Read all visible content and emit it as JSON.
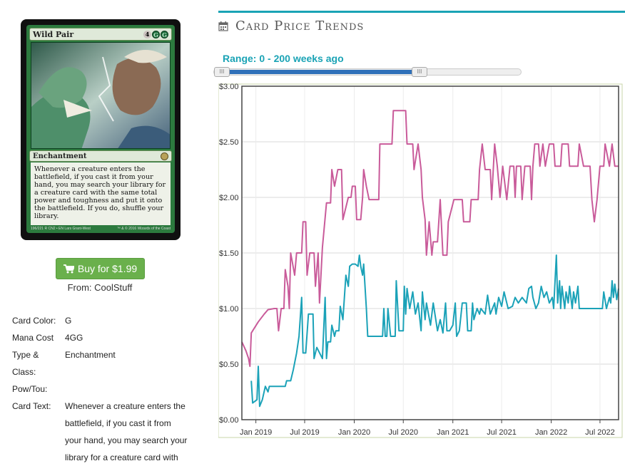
{
  "card": {
    "name": "Wild Pair",
    "mana_symbols": [
      "4",
      "G",
      "G"
    ],
    "type_line": "Enchantment",
    "rules_text": "Whenever a creature enters the battlefield, if you cast it from your hand, you may search your library for a creature card with the same total power and toughness and put it onto the battlefield. If you do, shuffle your library.",
    "collector": "196/221 R",
    "set_line": "CN2 • EN",
    "artist": "Lars Grant-West",
    "copyright": "™ & © 2016 Wizards of the Coast"
  },
  "buy": {
    "label": "Buy for $1.99",
    "from": "From: CoolStuff"
  },
  "details": [
    {
      "label": "Card Color:",
      "value": "G"
    },
    {
      "label": "Mana Cost",
      "value": "4GG"
    },
    {
      "label": "Type & Class:",
      "value": "Enchantment"
    },
    {
      "label": "Pow/Tou:",
      "value": ""
    },
    {
      "label": "Card Text:",
      "value": "Whenever a creature enters the battlefield, if you cast it from your hand, you may search your library for a creature card with"
    }
  ],
  "section": {
    "title": "Card Price Trends",
    "icon": "calendar-icon"
  },
  "range": {
    "label": "Range: 0 - 200 weeks ago",
    "low_weeks": 0,
    "high_weeks": 200
  },
  "chart_data": {
    "type": "line",
    "title": "",
    "xlabel": "",
    "ylabel": "",
    "ylim": [
      0,
      3
    ],
    "xlim": [
      "2018-11-10",
      "2022-09-08"
    ],
    "yticks": [
      "$0.00",
      "$0.50",
      "$1.00",
      "$1.50",
      "$2.00",
      "$2.50",
      "$3.00"
    ],
    "xticks": [
      {
        "label": "Jan 2019",
        "date": "2019-01-01"
      },
      {
        "label": "Jul 2019",
        "date": "2019-07-01"
      },
      {
        "label": "Jan 2020",
        "date": "2020-01-01"
      },
      {
        "label": "Jul 2020",
        "date": "2020-07-01"
      },
      {
        "label": "Jan 2021",
        "date": "2021-01-01"
      },
      {
        "label": "Jul 2021",
        "date": "2021-07-01"
      },
      {
        "label": "Jan 2022",
        "date": "2022-01-01"
      },
      {
        "label": "Jul 2022",
        "date": "2022-07-01"
      }
    ],
    "grid": true,
    "series": [
      {
        "color": "#c95b9a",
        "points": [
          [
            "2018-11-10",
            0.7
          ],
          [
            "2018-11-25",
            0.62
          ],
          [
            "2018-12-05",
            0.55
          ],
          [
            "2018-12-10",
            0.48
          ],
          [
            "2018-12-15",
            0.78
          ],
          [
            "2019-01-10",
            0.88
          ],
          [
            "2019-02-01",
            0.95
          ],
          [
            "2019-02-15",
            0.99
          ],
          [
            "2019-03-10",
            1.0
          ],
          [
            "2019-03-20",
            1.0
          ],
          [
            "2019-03-26",
            0.8
          ],
          [
            "2019-04-05",
            1.0
          ],
          [
            "2019-04-15",
            1.0
          ],
          [
            "2019-04-20",
            1.35
          ],
          [
            "2019-04-30",
            1.2
          ],
          [
            "2019-05-05",
            1.0
          ],
          [
            "2019-05-10",
            1.5
          ],
          [
            "2019-05-25",
            1.3
          ],
          [
            "2019-06-01",
            1.5
          ],
          [
            "2019-06-20",
            1.5
          ],
          [
            "2019-06-25",
            1.78
          ],
          [
            "2019-07-05",
            1.78
          ],
          [
            "2019-07-10",
            1.3
          ],
          [
            "2019-07-20",
            1.5
          ],
          [
            "2019-08-05",
            1.5
          ],
          [
            "2019-08-10",
            1.2
          ],
          [
            "2019-08-20",
            1.5
          ],
          [
            "2019-08-25",
            1.05
          ],
          [
            "2019-09-05",
            1.55
          ],
          [
            "2019-09-20",
            1.95
          ],
          [
            "2019-10-05",
            1.95
          ],
          [
            "2019-10-10",
            2.25
          ],
          [
            "2019-10-20",
            2.1
          ],
          [
            "2019-11-01",
            2.25
          ],
          [
            "2019-11-15",
            2.25
          ],
          [
            "2019-11-20",
            1.8
          ],
          [
            "2019-12-10",
            2.0
          ],
          [
            "2019-12-20",
            2.0
          ],
          [
            "2019-12-25",
            2.1
          ],
          [
            "2020-01-05",
            2.1
          ],
          [
            "2020-01-10",
            1.8
          ],
          [
            "2020-01-25",
            1.8
          ],
          [
            "2020-02-01",
            2.0
          ],
          [
            "2020-02-05",
            2.25
          ],
          [
            "2020-02-15",
            2.1
          ],
          [
            "2020-02-25",
            1.98
          ],
          [
            "2020-04-01",
            1.98
          ],
          [
            "2020-04-05",
            2.48
          ],
          [
            "2020-05-15",
            2.48
          ],
          [
            "2020-05-20",
            2.48
          ],
          [
            "2020-05-25",
            2.78
          ],
          [
            "2020-07-05",
            2.78
          ],
          [
            "2020-07-10",
            2.78
          ],
          [
            "2020-07-15",
            2.48
          ],
          [
            "2020-08-05",
            2.48
          ],
          [
            "2020-08-10",
            2.25
          ],
          [
            "2020-08-25",
            2.48
          ],
          [
            "2020-09-05",
            2.25
          ],
          [
            "2020-09-10",
            2.0
          ],
          [
            "2020-09-20",
            1.8
          ],
          [
            "2020-09-25",
            1.48
          ],
          [
            "2020-10-05",
            1.78
          ],
          [
            "2020-10-15",
            1.48
          ],
          [
            "2020-10-20",
            1.6
          ],
          [
            "2020-11-05",
            1.6
          ],
          [
            "2020-11-15",
            1.98
          ],
          [
            "2020-11-25",
            1.48
          ],
          [
            "2020-12-10",
            1.48
          ],
          [
            "2020-12-15",
            1.78
          ],
          [
            "2021-01-05",
            1.98
          ],
          [
            "2021-02-05",
            1.98
          ],
          [
            "2021-02-10",
            1.78
          ],
          [
            "2021-03-05",
            1.78
          ],
          [
            "2021-03-10",
            1.98
          ],
          [
            "2021-04-05",
            1.98
          ],
          [
            "2021-04-10",
            2.25
          ],
          [
            "2021-04-20",
            2.48
          ],
          [
            "2021-05-01",
            2.25
          ],
          [
            "2021-05-20",
            2.25
          ],
          [
            "2021-05-25",
            1.98
          ],
          [
            "2021-06-05",
            2.48
          ],
          [
            "2021-06-15",
            2.28
          ],
          [
            "2021-06-25",
            2.0
          ],
          [
            "2021-07-05",
            2.28
          ],
          [
            "2021-07-20",
            1.98
          ],
          [
            "2021-08-01",
            2.28
          ],
          [
            "2021-08-15",
            2.28
          ],
          [
            "2021-08-20",
            2.0
          ],
          [
            "2021-08-25",
            2.28
          ],
          [
            "2021-09-10",
            2.28
          ],
          [
            "2021-09-15",
            1.98
          ],
          [
            "2021-09-25",
            2.28
          ],
          [
            "2021-10-15",
            2.28
          ],
          [
            "2021-10-20",
            1.98
          ],
          [
            "2021-10-25",
            2.28
          ],
          [
            "2021-11-01",
            2.48
          ],
          [
            "2021-11-15",
            2.48
          ],
          [
            "2021-11-20",
            2.28
          ],
          [
            "2021-12-01",
            2.48
          ],
          [
            "2021-12-10",
            2.28
          ],
          [
            "2021-12-25",
            2.48
          ],
          [
            "2022-01-10",
            2.48
          ],
          [
            "2022-01-15",
            2.28
          ],
          [
            "2022-02-05",
            2.28
          ],
          [
            "2022-02-10",
            2.48
          ],
          [
            "2022-03-05",
            2.48
          ],
          [
            "2022-03-10",
            2.28
          ],
          [
            "2022-04-10",
            2.28
          ],
          [
            "2022-04-15",
            2.48
          ],
          [
            "2022-05-01",
            2.28
          ],
          [
            "2022-05-25",
            2.28
          ],
          [
            "2022-06-01",
            1.98
          ],
          [
            "2022-06-10",
            1.78
          ],
          [
            "2022-06-20",
            1.98
          ],
          [
            "2022-07-01",
            2.28
          ],
          [
            "2022-07-15",
            2.28
          ],
          [
            "2022-07-20",
            2.48
          ],
          [
            "2022-08-05",
            2.28
          ],
          [
            "2022-08-15",
            2.48
          ],
          [
            "2022-08-25",
            2.28
          ],
          [
            "2022-09-08",
            2.28
          ]
        ]
      },
      {
        "color": "#1ba2b8",
        "points": [
          [
            "2018-12-15",
            0.35
          ],
          [
            "2018-12-20",
            0.15
          ],
          [
            "2019-01-05",
            0.18
          ],
          [
            "2019-01-10",
            0.48
          ],
          [
            "2019-01-15",
            0.12
          ],
          [
            "2019-01-25",
            0.18
          ],
          [
            "2019-02-05",
            0.3
          ],
          [
            "2019-02-15",
            0.25
          ],
          [
            "2019-02-20",
            0.3
          ],
          [
            "2019-04-20",
            0.3
          ],
          [
            "2019-04-25",
            0.35
          ],
          [
            "2019-05-10",
            0.35
          ],
          [
            "2019-05-20",
            0.45
          ],
          [
            "2019-06-01",
            0.6
          ],
          [
            "2019-06-10",
            0.75
          ],
          [
            "2019-06-20",
            1.1
          ],
          [
            "2019-06-25",
            0.6
          ],
          [
            "2019-07-05",
            0.6
          ],
          [
            "2019-07-15",
            0.95
          ],
          [
            "2019-08-01",
            0.95
          ],
          [
            "2019-08-05",
            0.55
          ],
          [
            "2019-08-15",
            0.65
          ],
          [
            "2019-09-05",
            0.55
          ],
          [
            "2019-09-15",
            1.1
          ],
          [
            "2019-09-20",
            0.55
          ],
          [
            "2019-09-25",
            0.7
          ],
          [
            "2019-10-05",
            0.7
          ],
          [
            "2019-10-10",
            0.85
          ],
          [
            "2019-10-20",
            0.75
          ],
          [
            "2019-10-25",
            0.8
          ],
          [
            "2019-11-05",
            0.8
          ],
          [
            "2019-11-10",
            1.02
          ],
          [
            "2019-11-20",
            0.9
          ],
          [
            "2019-12-01",
            1.3
          ],
          [
            "2019-12-10",
            1.2
          ],
          [
            "2019-12-15",
            1.38
          ],
          [
            "2019-12-25",
            1.4
          ],
          [
            "2020-01-05",
            1.4
          ],
          [
            "2020-01-15",
            1.38
          ],
          [
            "2020-01-20",
            1.48
          ],
          [
            "2020-01-25",
            1.38
          ],
          [
            "2020-02-01",
            1.3
          ],
          [
            "2020-02-05",
            1.4
          ],
          [
            "2020-02-15",
            1.0
          ],
          [
            "2020-02-20",
            0.75
          ],
          [
            "2020-04-15",
            0.75
          ],
          [
            "2020-04-20",
            1.0
          ],
          [
            "2020-04-25",
            0.75
          ],
          [
            "2020-05-01",
            0.75
          ],
          [
            "2020-05-05",
            1.0
          ],
          [
            "2020-05-15",
            0.75
          ],
          [
            "2020-06-01",
            0.75
          ],
          [
            "2020-06-05",
            1.25
          ],
          [
            "2020-06-15",
            0.8
          ],
          [
            "2020-07-01",
            0.8
          ],
          [
            "2020-07-05",
            1.2
          ],
          [
            "2020-07-10",
            0.95
          ],
          [
            "2020-07-15",
            1.18
          ],
          [
            "2020-07-25",
            1.0
          ],
          [
            "2020-08-05",
            1.15
          ],
          [
            "2020-08-15",
            0.95
          ],
          [
            "2020-08-25",
            1.05
          ],
          [
            "2020-09-05",
            0.8
          ],
          [
            "2020-09-10",
            1.15
          ],
          [
            "2020-09-20",
            0.9
          ],
          [
            "2020-09-25",
            1.05
          ],
          [
            "2020-10-10",
            0.85
          ],
          [
            "2020-10-20",
            1.05
          ],
          [
            "2020-11-05",
            0.8
          ],
          [
            "2020-11-15",
            0.9
          ],
          [
            "2020-11-25",
            0.78
          ],
          [
            "2020-12-05",
            1.05
          ],
          [
            "2020-12-10",
            0.8
          ],
          [
            "2020-12-20",
            0.8
          ],
          [
            "2021-01-01",
            0.85
          ],
          [
            "2021-01-10",
            1.05
          ],
          [
            "2021-01-15",
            0.75
          ],
          [
            "2021-01-25",
            0.8
          ],
          [
            "2021-02-05",
            1.05
          ],
          [
            "2021-02-20",
            1.05
          ],
          [
            "2021-02-25",
            0.8
          ],
          [
            "2021-03-10",
            0.8
          ],
          [
            "2021-03-15",
            1.05
          ],
          [
            "2021-03-20",
            0.9
          ],
          [
            "2021-04-01",
            1.0
          ],
          [
            "2021-04-10",
            0.95
          ],
          [
            "2021-04-15",
            1.0
          ],
          [
            "2021-05-01",
            0.95
          ],
          [
            "2021-05-10",
            1.12
          ],
          [
            "2021-05-20",
            0.95
          ],
          [
            "2021-06-05",
            1.05
          ],
          [
            "2021-06-10",
            0.95
          ],
          [
            "2021-06-20",
            1.1
          ],
          [
            "2021-07-01",
            1.02
          ],
          [
            "2021-07-10",
            1.15
          ],
          [
            "2021-07-25",
            1.0
          ],
          [
            "2021-08-10",
            1.02
          ],
          [
            "2021-08-20",
            1.1
          ],
          [
            "2021-09-01",
            1.05
          ],
          [
            "2021-09-15",
            1.1
          ],
          [
            "2021-10-01",
            1.05
          ],
          [
            "2021-10-10",
            1.18
          ],
          [
            "2021-10-20",
            1.2
          ],
          [
            "2021-10-25",
            1.1
          ],
          [
            "2021-11-05",
            1.0
          ],
          [
            "2021-11-15",
            1.05
          ],
          [
            "2021-11-25",
            1.2
          ],
          [
            "2021-12-05",
            1.1
          ],
          [
            "2021-12-15",
            1.15
          ],
          [
            "2021-12-25",
            1.05
          ],
          [
            "2022-01-05",
            1.1
          ],
          [
            "2022-01-10",
            1.0
          ],
          [
            "2022-01-20",
            1.48
          ],
          [
            "2022-01-25",
            1.05
          ],
          [
            "2022-02-01",
            1.25
          ],
          [
            "2022-02-05",
            1.0
          ],
          [
            "2022-02-10",
            1.2
          ],
          [
            "2022-02-20",
            1.0
          ],
          [
            "2022-02-25",
            1.15
          ],
          [
            "2022-03-05",
            1.05
          ],
          [
            "2022-03-10",
            1.2
          ],
          [
            "2022-03-20",
            1.0
          ],
          [
            "2022-03-25",
            1.15
          ],
          [
            "2022-04-01",
            1.05
          ],
          [
            "2022-04-10",
            1.2
          ],
          [
            "2022-04-15",
            1.0
          ],
          [
            "2022-07-01",
            1.0
          ],
          [
            "2022-07-10",
            1.0
          ],
          [
            "2022-07-15",
            1.15
          ],
          [
            "2022-07-25",
            1.0
          ],
          [
            "2022-08-05",
            1.1
          ],
          [
            "2022-08-10",
            1.05
          ],
          [
            "2022-08-15",
            1.25
          ],
          [
            "2022-08-20",
            1.1
          ],
          [
            "2022-08-25",
            1.22
          ],
          [
            "2022-09-01",
            1.08
          ],
          [
            "2022-09-08",
            1.18
          ]
        ]
      }
    ]
  }
}
